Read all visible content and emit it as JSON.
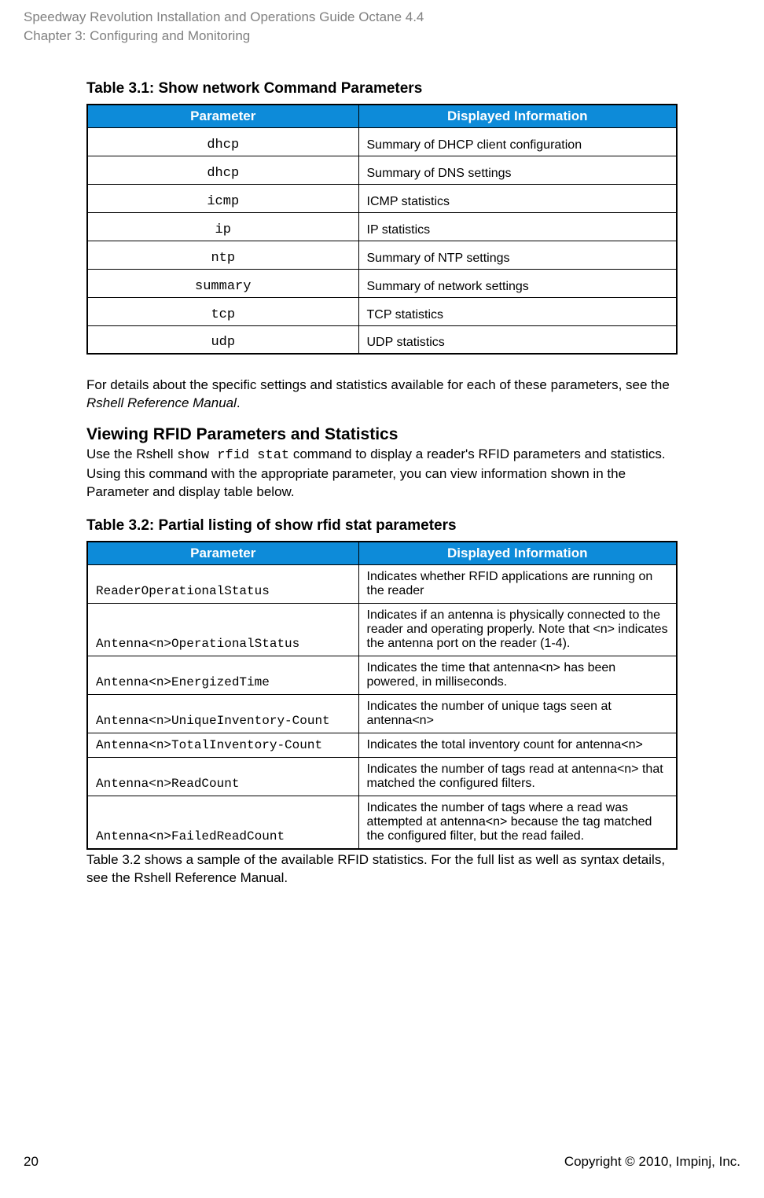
{
  "header": {
    "line1": "Speedway Revolution Installation and Operations Guide Octane 4.4",
    "line2": "Chapter 3: Configuring and Monitoring"
  },
  "table1": {
    "caption": "Table 3.1: Show network Command Parameters",
    "columns": [
      "Parameter",
      "Displayed Information"
    ],
    "rows": [
      [
        "dhcp",
        "Summary of DHCP client configuration"
      ],
      [
        "dhcp",
        "Summary of DNS settings"
      ],
      [
        "icmp",
        "ICMP statistics"
      ],
      [
        "ip",
        "IP statistics"
      ],
      [
        "ntp",
        "Summary of NTP settings"
      ],
      [
        "summary",
        "Summary of network settings"
      ],
      [
        "tcp",
        "TCP statistics"
      ],
      [
        "udp",
        "UDP statistics"
      ]
    ]
  },
  "para1_pre": "For details about the specific settings and statistics available for each of these parameters, see the ",
  "para1_italic": "Rshell Reference Manual",
  "para1_post": ".",
  "section_heading": "Viewing RFID Parameters and Statistics",
  "para2_pre": "Use the Rshell ",
  "para2_mono": "show rfid stat",
  "para2_post": " command to display a reader's RFID parameters and statistics. Using this command with the appropriate parameter, you can view information shown in the Parameter and display table below.",
  "table2": {
    "caption": "Table 3.2: Partial listing of show rfid stat parameters",
    "columns": [
      "Parameter",
      "Displayed Information"
    ],
    "rows": [
      [
        "ReaderOperationalStatus",
        "Indicates whether RFID applications are running on the reader"
      ],
      [
        "Antenna<n>OperationalStatus",
        "Indicates if an antenna is physically connected to the reader and operating properly. Note that <n> indicates the antenna port on the reader (1-4)."
      ],
      [
        "Antenna<n>EnergizedTime",
        "Indicates the time that antenna<n> has been powered, in milliseconds."
      ],
      [
        "Antenna<n>UniqueInventory-Count",
        "Indicates the number of unique tags seen at antenna<n>"
      ],
      [
        "Antenna<n>TotalInventory-Count",
        "Indicates the total inventory count for antenna<n>"
      ],
      [
        "Antenna<n>ReadCount",
        "Indicates the number of tags read at antenna<n> that matched the configured filters."
      ],
      [
        "Antenna<n>FailedReadCount",
        "Indicates the number of tags where a read was attempted at antenna<n> because the tag matched the configured filter, but the read failed."
      ]
    ]
  },
  "para3_pre": "Table 3.2 shows a sample of the available RFID statistics. For the full list as well as syntax details, see the ",
  "para3_italic": "Rshell Reference Manual",
  "para3_post": ".",
  "footer": {
    "page": "20",
    "copyright": "Copyright © 2010, Impinj, Inc."
  },
  "colors": {
    "header_blue": "#0d8bd9",
    "header_grey": "#808080",
    "black": "#000000",
    "white": "#ffffff"
  }
}
